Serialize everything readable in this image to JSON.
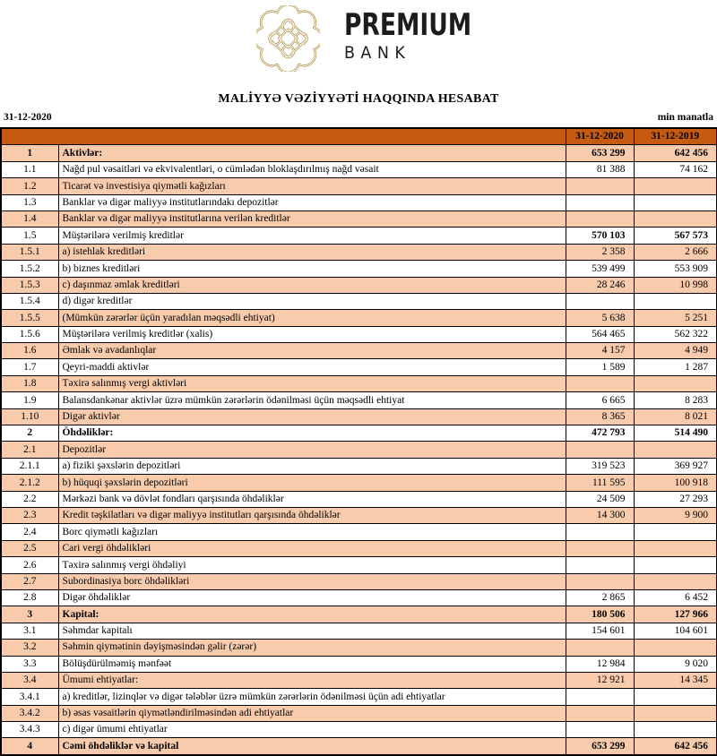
{
  "logo": {
    "brand": "PREMIUM",
    "brand_sub": "BANK",
    "emblem_icon": "ornamental-knot-emblem",
    "colors": {
      "gold": "#AE9249",
      "text": "#1C1C1A"
    }
  },
  "title": "MALİYYƏ VƏZİYYƏTİ HAQQINDA HESABAT",
  "meta": {
    "report_date": "31-12-2020",
    "unit_label": "min manatla"
  },
  "table": {
    "header": {
      "col2020": "31-12-2020",
      "col2019": "31-12-2019"
    },
    "colors": {
      "header_bg": "#C55A11",
      "row_peach": "#F8CBAD",
      "row_white": "#FFFFFF",
      "border": "#000000"
    },
    "rows": [
      {
        "num": "1",
        "label": "Aktivlər:",
        "v2020": "653 299",
        "v2019": "642 456",
        "bold": true
      },
      {
        "num": "1.1",
        "label": "Nağd pul vəsaitləri və ekvivalentləri, o cümlədən bloklaşdırılmış nağd vəsait",
        "v2020": "81 388",
        "v2019": "74 162"
      },
      {
        "num": "1.2",
        "label": "Ticarət və investisiya qiymətli kağızları",
        "v2020": "",
        "v2019": ""
      },
      {
        "num": "1.3",
        "label": "Banklar və digər maliyyə institutlarındakı depozitlər",
        "v2020": "",
        "v2019": ""
      },
      {
        "num": "1.4",
        "label": "Banklar və digər maliyyə institutlarına verilən kreditlər",
        "v2020": "",
        "v2019": ""
      },
      {
        "num": "1.5",
        "label": "Müştərilərə verilmiş kreditlər",
        "v2020": "570 103",
        "v2019": "567 573",
        "bold_values": true
      },
      {
        "num": "1.5.1",
        "label": "a) istehlak kreditləri",
        "v2020": "2 358",
        "v2019": "2 666"
      },
      {
        "num": "1.5.2",
        "label": "b) biznes kreditləri",
        "v2020": "539 499",
        "v2019": "553 909"
      },
      {
        "num": "1.5.3",
        "label": "c) daşınmaz əmlak kreditləri",
        "v2020": "28 246",
        "v2019": "10 998"
      },
      {
        "num": "1.5.4",
        "label": "d) digər kreditlər",
        "v2020": "",
        "v2019": ""
      },
      {
        "num": "1.5.5",
        "label": "(Mümkün zərərlər üçün yaradılan məqsədli ehtiyat)",
        "v2020": "5 638",
        "v2019": "5 251"
      },
      {
        "num": "1.5.6",
        "label": "Müştərilərə verilmiş kreditlər (xalis)",
        "v2020": "564 465",
        "v2019": "562 322"
      },
      {
        "num": "1.6",
        "label": "Əmlak və avadanlıqlar",
        "v2020": "4 157",
        "v2019": "4 949"
      },
      {
        "num": "1.7",
        "label": "Qeyri-maddi aktivlər",
        "v2020": "1 589",
        "v2019": "1 287"
      },
      {
        "num": "1.8",
        "label": "Təxirə salınmış vergi aktivləri",
        "v2020": "",
        "v2019": ""
      },
      {
        "num": "1.9",
        "label": "Balansdankənar aktivlər üzrə mümkün zərərlərin ödənilməsi üçün məqsədli ehtiyat",
        "v2020": "6 665",
        "v2019": "8 283"
      },
      {
        "num": "1.10",
        "label": "Digər aktivlər",
        "v2020": "8 365",
        "v2019": "8 021"
      },
      {
        "num": "2",
        "label": "Öhdəliklər:",
        "v2020": "472 793",
        "v2019": "514 490",
        "bold": true
      },
      {
        "num": "2.1",
        "label": "Depozitlər",
        "v2020": "",
        "v2019": ""
      },
      {
        "num": "2.1.1",
        "label": "a) fiziki şəxslərin depozitləri",
        "v2020": "319 523",
        "v2019": "369 927"
      },
      {
        "num": "2.1.2",
        "label": "b) hüquqi şəxslərin depozitləri",
        "v2020": "111 595",
        "v2019": "100 918"
      },
      {
        "num": "2.2",
        "label": "Mərkəzi bank və dövlət fondları qarşısında öhdəliklər",
        "v2020": "24 509",
        "v2019": "27 293"
      },
      {
        "num": "2.3",
        "label": "Kredit təşkilatları və digər maliyyə institutları qarşısında öhdəliklər",
        "v2020": "14 300",
        "v2019": "9 900"
      },
      {
        "num": "2.4",
        "label": "Borc qiymətli kağızları",
        "v2020": "",
        "v2019": ""
      },
      {
        "num": "2.5",
        "label": "Cari vergi öhdəlikləri",
        "v2020": "",
        "v2019": ""
      },
      {
        "num": "2.6",
        "label": "Təxirə salınmış vergi öhdəliyi",
        "v2020": "",
        "v2019": ""
      },
      {
        "num": "2.7",
        "label": "Subordinasiya borc öhdəlikləri",
        "v2020": "",
        "v2019": ""
      },
      {
        "num": "2.8",
        "label": "Digər öhdəliklər",
        "v2020": "2 865",
        "v2019": "6 452"
      },
      {
        "num": "3",
        "label": "Kapital:",
        "v2020": "180 506",
        "v2019": "127 966",
        "bold": true
      },
      {
        "num": "3.1",
        "label": "Səhmdar kapitalı",
        "v2020": "154 601",
        "v2019": "104 601"
      },
      {
        "num": "3.2",
        "label": "Səhmin qiymətinin dəyişməsindən gəlir (zərər)",
        "v2020": "",
        "v2019": ""
      },
      {
        "num": "3.3",
        "label": "Bölüşdürülməmiş mənfəət",
        "v2020": "12 984",
        "v2019": "9 020"
      },
      {
        "num": "3.4",
        "label": "Ümumi ehtiyatlar:",
        "v2020": "12 921",
        "v2019": "14 345"
      },
      {
        "num": "3.4.1",
        "label": "a) kreditlər, lizinqlər və digər tələblər üzrə mümkün zərərlərin ödənilməsi üçün adi ehtiyatlar",
        "v2020": "",
        "v2019": ""
      },
      {
        "num": "3.4.2",
        "label": "b) əsas vəsaitlərin qiymətləndirilməsindən adi ehtiyatlar",
        "v2020": "",
        "v2019": ""
      },
      {
        "num": "3.4.3",
        "label": "c) digər ümumi ehtiyatlar",
        "v2020": "",
        "v2019": ""
      },
      {
        "num": "4",
        "label": "Cəmi öhdəliklər və kapital",
        "v2020": "653 299",
        "v2019": "642 456",
        "bold": true
      }
    ]
  }
}
